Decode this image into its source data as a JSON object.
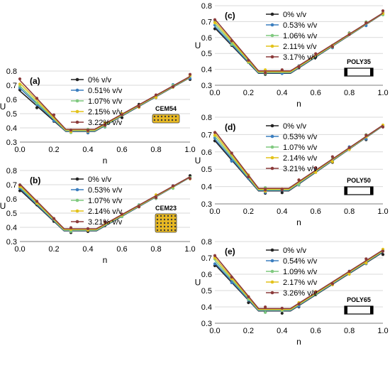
{
  "colors": {
    "series": [
      "#222222",
      "#3b7ebf",
      "#7fc97f",
      "#e3c21a",
      "#8b3a3a"
    ],
    "grid": "#d9d9d9",
    "axis": "#7f7f7f",
    "inset_fill": "#e8b923"
  },
  "chart_data": [
    {
      "type": "line",
      "panel_label": "(a)",
      "inset_label": "CEM54",
      "inset_icon": "porous-block-icon",
      "xlabel": "n",
      "ylabel": "U",
      "xlim": [
        0,
        1
      ],
      "ylim": [
        0.3,
        0.8
      ],
      "xticks": [
        "0.0",
        "0.2",
        "0.4",
        "0.6",
        "0.8",
        "1.0"
      ],
      "yticks": [
        "0.3",
        "0.4",
        "0.5",
        "0.6",
        "0.7",
        "0.8"
      ],
      "grid": "horizontal",
      "legend_position": "top-center",
      "knees": [
        0.27,
        0.44
      ],
      "series": [
        {
          "name": "0% v/v",
          "y0": 0.66,
          "ymin": 0.375,
          "y1": 0.755
        },
        {
          "name": "0.51% v/v",
          "y0": 0.68,
          "ymin": 0.378,
          "y1": 0.757
        },
        {
          "name": "1.07% v/v",
          "y0": 0.695,
          "ymin": 0.381,
          "y1": 0.758
        },
        {
          "name": "2.15% v/v",
          "y0": 0.715,
          "ymin": 0.385,
          "y1": 0.76
        },
        {
          "name": "3.22% v/v",
          "y0": 0.735,
          "ymin": 0.39,
          "y1": 0.762
        }
      ],
      "points_x": [
        0.0,
        0.1,
        0.2,
        0.3,
        0.4,
        0.5,
        0.6,
        0.7,
        0.8,
        0.9,
        1.0
      ]
    },
    {
      "type": "line",
      "panel_label": "(b)",
      "inset_label": "CEM23",
      "inset_icon": "porous-block-icon",
      "xlabel": "n",
      "ylabel": "U",
      "xlim": [
        0,
        1
      ],
      "ylim": [
        0.3,
        0.8
      ],
      "xticks": [
        "0.0",
        "0.2",
        "0.4",
        "0.6",
        "0.8",
        "1.0"
      ],
      "yticks": [
        "0.3",
        "0.4",
        "0.5",
        "0.6",
        "0.7",
        "0.8"
      ],
      "grid": "horizontal",
      "legend_position": "top-center",
      "knees": [
        0.26,
        0.45
      ],
      "series": [
        {
          "name": "0% v/v",
          "y0": 0.665,
          "ymin": 0.375,
          "y1": 0.752
        },
        {
          "name": "0.53% v/v",
          "y0": 0.675,
          "ymin": 0.378,
          "y1": 0.753
        },
        {
          "name": "1.07% v/v",
          "y0": 0.685,
          "ymin": 0.381,
          "y1": 0.754
        },
        {
          "name": "2.14% v/v",
          "y0": 0.695,
          "ymin": 0.385,
          "y1": 0.755
        },
        {
          "name": "3.21% v/v",
          "y0": 0.705,
          "ymin": 0.39,
          "y1": 0.756
        }
      ],
      "points_x": [
        0.0,
        0.1,
        0.2,
        0.3,
        0.4,
        0.5,
        0.6,
        0.7,
        0.8,
        0.9,
        1.0
      ]
    },
    {
      "type": "line",
      "panel_label": "(c)",
      "inset_label": "POLY35",
      "inset_icon": "bar-block-icon",
      "xlabel": "n",
      "ylabel": "U",
      "xlim": [
        0,
        1
      ],
      "ylim": [
        0.3,
        0.8
      ],
      "xticks": [
        "0.0",
        "0.2",
        "0.4",
        "0.6",
        "0.8",
        "1.0"
      ],
      "yticks": [
        "0.3",
        "0.4",
        "0.5",
        "0.6",
        "0.7",
        "0.8"
      ],
      "grid": "horizontal",
      "legend_position": "top-center",
      "knees": [
        0.26,
        0.45
      ],
      "series": [
        {
          "name": "0% v/v",
          "y0": 0.66,
          "ymin": 0.375,
          "y1": 0.75
        },
        {
          "name": "0.53% v/v",
          "y0": 0.67,
          "ymin": 0.378,
          "y1": 0.751
        },
        {
          "name": "1.06% v/v",
          "y0": 0.685,
          "ymin": 0.381,
          "y1": 0.752
        },
        {
          "name": "2.11% v/v",
          "y0": 0.7,
          "ymin": 0.385,
          "y1": 0.753
        },
        {
          "name": "3.17% v/v",
          "y0": 0.715,
          "ymin": 0.39,
          "y1": 0.754
        }
      ],
      "points_x": [
        0.0,
        0.1,
        0.2,
        0.3,
        0.4,
        0.5,
        0.6,
        0.7,
        0.8,
        0.9,
        1.0
      ]
    },
    {
      "type": "line",
      "panel_label": "(d)",
      "inset_label": "POLY50",
      "inset_icon": "bar-block-icon",
      "xlabel": "n",
      "ylabel": "U",
      "xlim": [
        0,
        1
      ],
      "ylim": [
        0.3,
        0.8
      ],
      "xticks": [
        "0.0",
        "0.2",
        "0.4",
        "0.6",
        "0.8",
        "1.0"
      ],
      "yticks": [
        "0.3",
        "0.4",
        "0.5",
        "0.6",
        "0.7",
        "0.8"
      ],
      "grid": "horizontal",
      "legend_position": "top-center",
      "knees": [
        0.26,
        0.44
      ],
      "series": [
        {
          "name": "0% v/v",
          "y0": 0.665,
          "ymin": 0.375,
          "y1": 0.75
        },
        {
          "name": "0.53% v/v",
          "y0": 0.675,
          "ymin": 0.378,
          "y1": 0.751
        },
        {
          "name": "1.07% v/v",
          "y0": 0.69,
          "ymin": 0.381,
          "y1": 0.752
        },
        {
          "name": "2.14% v/v",
          "y0": 0.705,
          "ymin": 0.385,
          "y1": 0.753
        },
        {
          "name": "3.21% v/v",
          "y0": 0.72,
          "ymin": 0.39,
          "y1": 0.754
        }
      ],
      "points_x": [
        0.0,
        0.1,
        0.2,
        0.3,
        0.4,
        0.5,
        0.6,
        0.7,
        0.8,
        0.9,
        1.0
      ]
    },
    {
      "type": "line",
      "panel_label": "(e)",
      "inset_label": "POLY65",
      "inset_icon": "bar-block-icon",
      "xlabel": "n",
      "ylabel": "U",
      "xlim": [
        0,
        1
      ],
      "ylim": [
        0.3,
        0.8
      ],
      "xticks": [
        "0.0",
        "0.2",
        "0.4",
        "0.6",
        "0.8",
        "1.0"
      ],
      "yticks": [
        "0.3",
        "0.4",
        "0.5",
        "0.6",
        "0.7",
        "0.8"
      ],
      "grid": "horizontal",
      "legend_position": "top-center",
      "knees": [
        0.26,
        0.45
      ],
      "series": [
        {
          "name": "0% v/v",
          "y0": 0.66,
          "ymin": 0.375,
          "y1": 0.735
        },
        {
          "name": "0.54% v/v",
          "y0": 0.67,
          "ymin": 0.378,
          "y1": 0.738
        },
        {
          "name": "1.09% v/v",
          "y0": 0.685,
          "ymin": 0.381,
          "y1": 0.741
        },
        {
          "name": "2.17% v/v",
          "y0": 0.7,
          "ymin": 0.385,
          "y1": 0.744
        },
        {
          "name": "3.26% v/v",
          "y0": 0.715,
          "ymin": 0.39,
          "y1": 0.748
        }
      ],
      "points_x": [
        0.0,
        0.1,
        0.2,
        0.3,
        0.4,
        0.5,
        0.6,
        0.7,
        0.8,
        0.9,
        1.0
      ]
    }
  ]
}
